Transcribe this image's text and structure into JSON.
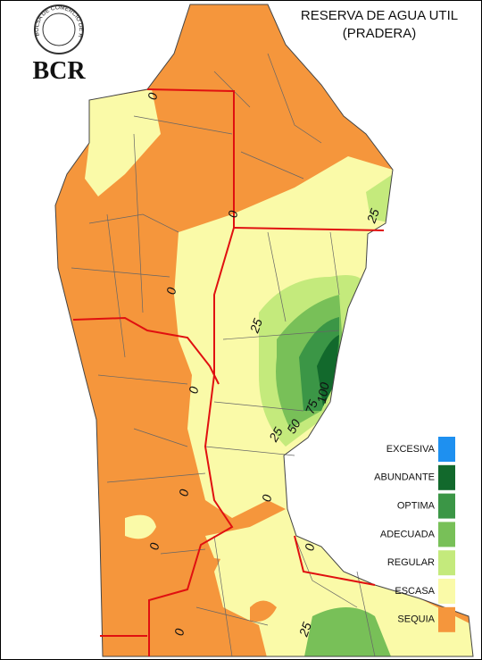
{
  "header": {
    "logo_text": "BOLSA DE COMERCIO DE ROSARIO",
    "brand": "BCR"
  },
  "title": [
    "RESERVA DE AGUA UTIL",
    "(PRADERA)"
  ],
  "legend": [
    {
      "label": "EXCESIVA",
      "color": "#1e90f0"
    },
    {
      "label": "ABUNDANTE",
      "color": "#12692c"
    },
    {
      "label": "OPTIMA",
      "color": "#3b9646"
    },
    {
      "label": "ADECUADA",
      "color": "#78c058"
    },
    {
      "label": "REGULAR",
      "color": "#c4ea7c"
    },
    {
      "label": "ESCASA",
      "color": "#fafaa8"
    },
    {
      "label": "SEQUIA",
      "color": "#f5963c"
    }
  ],
  "contour_labels": [
    0,
    0,
    0,
    0,
    0,
    0,
    0,
    0,
    0,
    25,
    25,
    25,
    25,
    50,
    75,
    100
  ]
}
